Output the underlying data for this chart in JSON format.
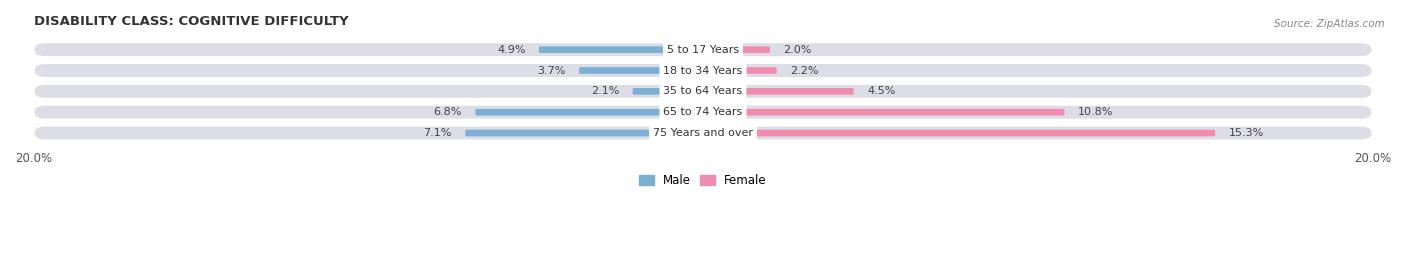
{
  "title": "DISABILITY CLASS: COGNITIVE DIFFICULTY",
  "source_text": "Source: ZipAtlas.com",
  "categories": [
    "5 to 17 Years",
    "18 to 34 Years",
    "35 to 64 Years",
    "65 to 74 Years",
    "75 Years and over"
  ],
  "male_values": [
    4.9,
    3.7,
    2.1,
    6.8,
    7.1
  ],
  "female_values": [
    2.0,
    2.2,
    4.5,
    10.8,
    15.3
  ],
  "male_color": "#7bafd4",
  "female_color": "#f08cad",
  "pill_bg_color": "#dddde8",
  "pill_inner_color": "#e8e8f0",
  "xlim": 20.0,
  "title_fontsize": 9.5,
  "source_fontsize": 7.5,
  "label_fontsize": 8,
  "tick_fontsize": 8.5,
  "legend_fontsize": 8.5,
  "figsize": [
    14.06,
    2.7
  ],
  "dpi": 100
}
